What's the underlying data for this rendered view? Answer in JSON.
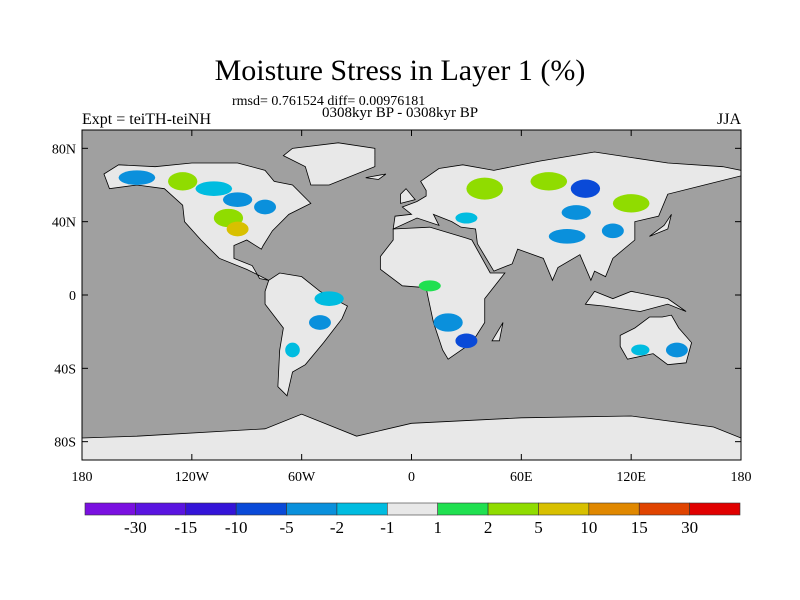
{
  "chart_data": {
    "type": "heatmap",
    "title": "Moisture Stress in Layer 1 (%)",
    "stats_line": "rmsd= 0.761524 diff= 0.00976181",
    "period_line": "0308kyr BP - 0308kyr BP",
    "left_label": "Expt = teiTH-teiNH",
    "right_label": "JJA",
    "xlim": [
      -180,
      180
    ],
    "ylim": [
      -90,
      90
    ],
    "x_ticks": [
      {
        "v": -180,
        "label": "180"
      },
      {
        "v": -120,
        "label": "120W"
      },
      {
        "v": -60,
        "label": "60W"
      },
      {
        "v": 0,
        "label": "0"
      },
      {
        "v": 60,
        "label": "60E"
      },
      {
        "v": 120,
        "label": "120E"
      },
      {
        "v": 180,
        "label": "180"
      }
    ],
    "y_ticks": [
      {
        "v": 80,
        "label": "80N"
      },
      {
        "v": 40,
        "label": "40N"
      },
      {
        "v": 0,
        "label": "0"
      },
      {
        "v": -40,
        "label": "40S"
      },
      {
        "v": -80,
        "label": "80S"
      }
    ],
    "colorbar": {
      "colors": [
        "#7a10e0",
        "#5a14e0",
        "#3414d8",
        "#0a4ad8",
        "#0a90dc",
        "#00bce0",
        "#e8e8e8",
        "#20e050",
        "#90dc00",
        "#d8c000",
        "#e08800",
        "#e04400",
        "#e00000"
      ],
      "labels": [
        "-30",
        "-15",
        "-10",
        "-5",
        "-2",
        "-1",
        "1",
        "2",
        "5",
        "10",
        "15",
        "30"
      ]
    },
    "ocean_color": "#a0a0a0",
    "patches": [
      {
        "lon": -150,
        "lat": 64,
        "rx": 10,
        "ry": 4,
        "c": 4
      },
      {
        "lon": -125,
        "lat": 62,
        "rx": 8,
        "ry": 5,
        "c": 8
      },
      {
        "lon": -108,
        "lat": 58,
        "rx": 10,
        "ry": 4,
        "c": 5
      },
      {
        "lon": -95,
        "lat": 52,
        "rx": 8,
        "ry": 4,
        "c": 4
      },
      {
        "lon": -100,
        "lat": 42,
        "rx": 8,
        "ry": 5,
        "c": 8
      },
      {
        "lon": -95,
        "lat": 36,
        "rx": 6,
        "ry": 4,
        "c": 9
      },
      {
        "lon": -80,
        "lat": 48,
        "rx": 6,
        "ry": 4,
        "c": 4
      },
      {
        "lon": -45,
        "lat": -2,
        "rx": 8,
        "ry": 4,
        "c": 5
      },
      {
        "lon": -50,
        "lat": -15,
        "rx": 6,
        "ry": 4,
        "c": 4
      },
      {
        "lon": -65,
        "lat": -30,
        "rx": 4,
        "ry": 4,
        "c": 5
      },
      {
        "lon": 40,
        "lat": 58,
        "rx": 10,
        "ry": 6,
        "c": 8
      },
      {
        "lon": 75,
        "lat": 62,
        "rx": 10,
        "ry": 5,
        "c": 8
      },
      {
        "lon": 95,
        "lat": 58,
        "rx": 8,
        "ry": 5,
        "c": 3
      },
      {
        "lon": 120,
        "lat": 50,
        "rx": 10,
        "ry": 5,
        "c": 8
      },
      {
        "lon": 90,
        "lat": 45,
        "rx": 8,
        "ry": 4,
        "c": 4
      },
      {
        "lon": 85,
        "lat": 32,
        "rx": 10,
        "ry": 4,
        "c": 4
      },
      {
        "lon": 110,
        "lat": 35,
        "rx": 6,
        "ry": 4,
        "c": 4
      },
      {
        "lon": 30,
        "lat": 42,
        "rx": 6,
        "ry": 3,
        "c": 5
      },
      {
        "lon": 20,
        "lat": -15,
        "rx": 8,
        "ry": 5,
        "c": 4
      },
      {
        "lon": 30,
        "lat": -25,
        "rx": 6,
        "ry": 4,
        "c": 3
      },
      {
        "lon": 10,
        "lat": 5,
        "rx": 6,
        "ry": 3,
        "c": 7
      },
      {
        "lon": 145,
        "lat": -30,
        "rx": 6,
        "ry": 4,
        "c": 4
      },
      {
        "lon": 125,
        "lat": -30,
        "rx": 5,
        "ry": 3,
        "c": 5
      }
    ]
  }
}
